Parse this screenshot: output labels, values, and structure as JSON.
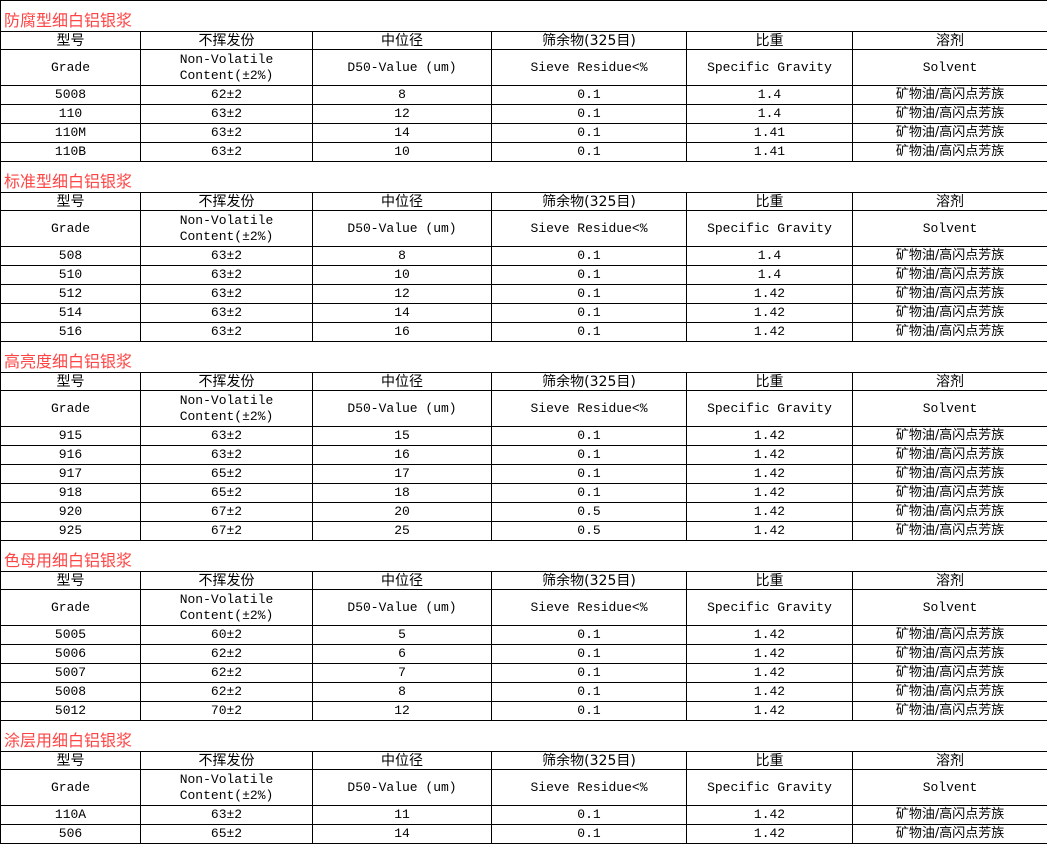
{
  "headers": {
    "cn": [
      "型号",
      "不挥发份",
      "中位径",
      "筛余物(325目)",
      "比重",
      "溶剂"
    ],
    "en": [
      "Grade",
      "Non-Volatile\nContent(±2%)",
      "D50-Value (um)",
      "Sieve Residue<%",
      "Specific Gravity",
      "Solvent"
    ]
  },
  "colors": {
    "section_title": "#ff4444",
    "border": "#000000"
  },
  "sections": [
    {
      "title": "防腐型细白铝银浆",
      "rows": [
        [
          "5008",
          "62±2",
          "8",
          "0.1",
          "1.4",
          "矿物油/高闪点芳族"
        ],
        [
          "110",
          "63±2",
          "12",
          "0.1",
          "1.4",
          "矿物油/高闪点芳族"
        ],
        [
          "110M",
          "63±2",
          "14",
          "0.1",
          "1.41",
          "矿物油/高闪点芳族"
        ],
        [
          "110B",
          "63±2",
          "10",
          "0.1",
          "1.41",
          "矿物油/高闪点芳族"
        ]
      ]
    },
    {
      "title": "标准型细白铝银浆",
      "rows": [
        [
          "508",
          "63±2",
          "8",
          "0.1",
          "1.4",
          "矿物油/高闪点芳族"
        ],
        [
          "510",
          "63±2",
          "10",
          "0.1",
          "1.4",
          "矿物油/高闪点芳族"
        ],
        [
          "512",
          "63±2",
          "12",
          "0.1",
          "1.42",
          "矿物油/高闪点芳族"
        ],
        [
          "514",
          "63±2",
          "14",
          "0.1",
          "1.42",
          "矿物油/高闪点芳族"
        ],
        [
          "516",
          "63±2",
          "16",
          "0.1",
          "1.42",
          "矿物油/高闪点芳族"
        ]
      ]
    },
    {
      "title": "高亮度细白铝银浆",
      "rows": [
        [
          "915",
          "63±2",
          "15",
          "0.1",
          "1.42",
          "矿物油/高闪点芳族"
        ],
        [
          "916",
          "63±2",
          "16",
          "0.1",
          "1.42",
          "矿物油/高闪点芳族"
        ],
        [
          "917",
          "65±2",
          "17",
          "0.1",
          "1.42",
          "矿物油/高闪点芳族"
        ],
        [
          "918",
          "65±2",
          "18",
          "0.1",
          "1.42",
          "矿物油/高闪点芳族"
        ],
        [
          "920",
          "67±2",
          "20",
          "0.5",
          "1.42",
          "矿物油/高闪点芳族"
        ],
        [
          "925",
          "67±2",
          "25",
          "0.5",
          "1.42",
          "矿物油/高闪点芳族"
        ]
      ]
    },
    {
      "title": "色母用细白铝银浆",
      "rows": [
        [
          "5005",
          "60±2",
          "5",
          "0.1",
          "1.42",
          "矿物油/高闪点芳族"
        ],
        [
          "5006",
          "62±2",
          "6",
          "0.1",
          "1.42",
          "矿物油/高闪点芳族"
        ],
        [
          "5007",
          "62±2",
          "7",
          "0.1",
          "1.42",
          "矿物油/高闪点芳族"
        ],
        [
          "5008",
          "62±2",
          "8",
          "0.1",
          "1.42",
          "矿物油/高闪点芳族"
        ],
        [
          "5012",
          "70±2",
          "12",
          "0.1",
          "1.42",
          "矿物油/高闪点芳族"
        ]
      ]
    },
    {
      "title": "涂层用细白铝银浆",
      "rows": [
        [
          "110A",
          "63±2",
          "11",
          "0.1",
          "1.42",
          "矿物油/高闪点芳族"
        ],
        [
          "506",
          "65±2",
          "14",
          "0.1",
          "1.42",
          "矿物油/高闪点芳族"
        ]
      ]
    }
  ]
}
